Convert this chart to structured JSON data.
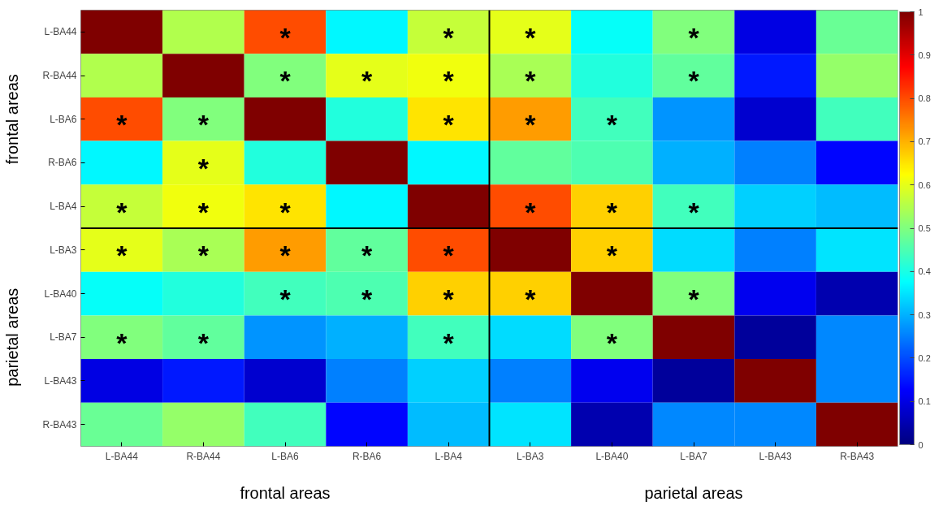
{
  "chart_data": {
    "type": "heatmap",
    "categories": [
      "L-BA44",
      "R-BA44",
      "L-BA6",
      "R-BA6",
      "L-BA4",
      "L-BA3",
      "L-BA40",
      "L-BA7",
      "L-BA43",
      "R-BA43"
    ],
    "y_categories": [
      "L-BA44",
      "R-BA44",
      "L-BA6",
      "R-BA6",
      "L-BA4",
      "L-BA3",
      "L-BA40",
      "L-BA7",
      "L-BA43",
      "R-BA43"
    ],
    "cells": [
      [
        1,
        0.55,
        0.8,
        0.37,
        0.57,
        0.6,
        0.38,
        0.5,
        0.1,
        0.48
      ],
      [
        0.55,
        1,
        0.5,
        0.6,
        0.61,
        0.54,
        0.41,
        0.47,
        0.15,
        0.52
      ],
      [
        0.8,
        0.5,
        1,
        0.41,
        0.65,
        0.72,
        0.44,
        0.27,
        0.08,
        0.44
      ],
      [
        0.37,
        0.6,
        0.41,
        1,
        0.37,
        0.47,
        0.45,
        0.3,
        0.25,
        0.13
      ],
      [
        0.57,
        0.61,
        0.65,
        0.37,
        1,
        0.8,
        0.67,
        0.44,
        0.33,
        0.31
      ],
      [
        0.6,
        0.54,
        0.72,
        0.47,
        0.8,
        1,
        0.67,
        0.34,
        0.25,
        0.35
      ],
      [
        0.38,
        0.41,
        0.44,
        0.45,
        0.67,
        0.67,
        1,
        0.5,
        0.11,
        0.05
      ],
      [
        0.5,
        0.47,
        0.27,
        0.3,
        0.44,
        0.34,
        0.5,
        1,
        0.03,
        0.26
      ],
      [
        0.1,
        0.15,
        0.08,
        0.25,
        0.33,
        0.25,
        0.11,
        0.03,
        1,
        0.26
      ],
      [
        0.48,
        0.52,
        0.44,
        0.13,
        0.31,
        0.35,
        0.05,
        0.26,
        0.26,
        1
      ]
    ],
    "cell_labels": [
      [
        null,
        null,
        "*",
        null,
        "*",
        "*",
        null,
        "*",
        null,
        null
      ],
      [
        null,
        null,
        "*",
        "*",
        "*",
        "*",
        null,
        "*",
        null,
        null
      ],
      [
        "*",
        "*",
        null,
        null,
        "*",
        "*",
        "*",
        null,
        null,
        null
      ],
      [
        null,
        "*",
        null,
        null,
        null,
        null,
        null,
        null,
        null,
        null
      ],
      [
        "*",
        "*",
        "*",
        null,
        null,
        "*",
        "*",
        "*",
        null,
        null
      ],
      [
        "*",
        "*",
        "*",
        "*",
        "*",
        null,
        "*",
        null,
        null,
        null
      ],
      [
        null,
        null,
        "*",
        "*",
        "*",
        "*",
        null,
        "*",
        null,
        null
      ],
      [
        "*",
        "*",
        null,
        null,
        "*",
        null,
        "*",
        null,
        null,
        null
      ],
      [
        null,
        null,
        null,
        null,
        null,
        null,
        null,
        null,
        null,
        null
      ],
      [
        null,
        null,
        null,
        null,
        null,
        null,
        null,
        null,
        null,
        null
      ]
    ],
    "clim": [
      0,
      1
    ],
    "cticks": [
      0,
      0.1,
      0.2,
      0.3,
      0.4,
      0.5,
      0.6,
      0.7,
      0.8,
      0.9,
      1
    ],
    "annotations": [
      "frontal areas",
      "parietal areas",
      "frontal areas",
      "parietal areas"
    ]
  }
}
